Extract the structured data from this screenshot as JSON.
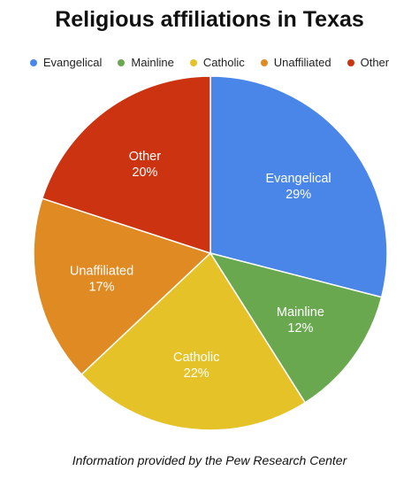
{
  "title": "Religious affiliations in Texas",
  "footer": "Information provided by the Pew Research Center",
  "chart_data": {
    "type": "pie",
    "title": "Religious affiliations in Texas",
    "legend_position": "top",
    "slices": [
      {
        "name": "Evangelical",
        "value": 29,
        "label": "29%",
        "color": "#4a86e8"
      },
      {
        "name": "Mainline",
        "value": 12,
        "label": "12%",
        "color": "#6aa84f"
      },
      {
        "name": "Catholic",
        "value": 22,
        "label": "22%",
        "color": "#e6c229"
      },
      {
        "name": "Unaffiliated",
        "value": 17,
        "label": "17%",
        "color": "#e08a23"
      },
      {
        "name": "Other",
        "value": 20,
        "label": "20%",
        "color": "#cc3311"
      }
    ]
  }
}
